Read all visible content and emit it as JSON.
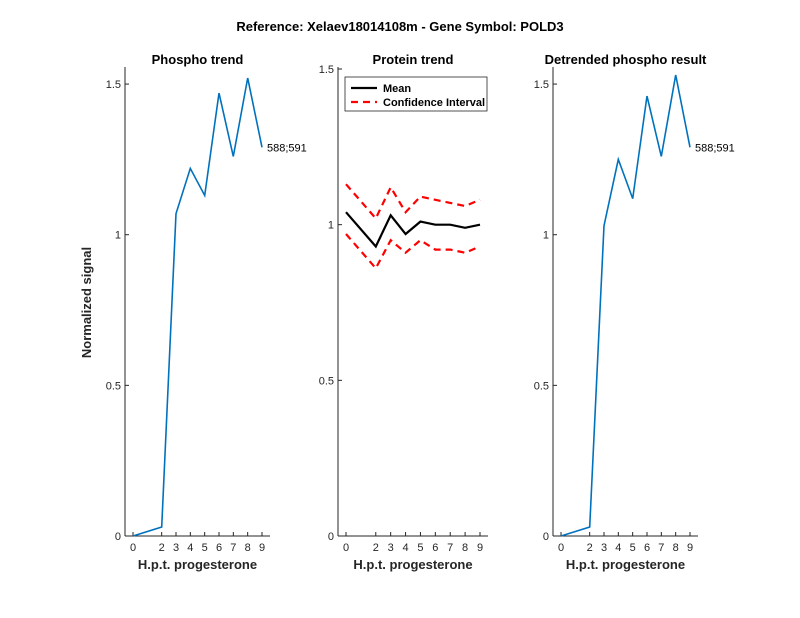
{
  "suptitle": "Reference:  Xelaev18014108m - Gene Symbol:  POLD3",
  "colors": {
    "phospho": "#0072BD",
    "mean": "#000000",
    "ci": "#FF0000"
  },
  "chart_data": [
    {
      "type": "line",
      "title": "Phospho trend",
      "xlabel": "H.p.t. progesterone",
      "ylabel": "Normalized signal",
      "xticks": [
        0,
        2,
        3,
        4,
        5,
        6,
        7,
        8,
        9
      ],
      "yticks": [
        "0",
        "0.5",
        "1",
        "1.5"
      ],
      "ylim": [
        0,
        1.55
      ],
      "series": [
        {
          "annotation": "588;591",
          "x": [
            0,
            2,
            3,
            4,
            5,
            6,
            7,
            8,
            9
          ],
          "y": [
            0.0,
            0.03,
            1.07,
            1.22,
            1.13,
            1.47,
            1.26,
            1.52,
            1.29
          ]
        }
      ]
    },
    {
      "type": "line",
      "title": "Protein trend",
      "xlabel": "H.p.t. progesterone",
      "xticks": [
        0,
        2,
        3,
        4,
        5,
        6,
        7,
        8,
        9
      ],
      "yticks": [
        "0",
        "0.5",
        "1",
        "1.5"
      ],
      "ylim": [
        0,
        1.5
      ],
      "legend": {
        "placement": "top-left",
        "entries": [
          "Mean",
          "Confidence Interval"
        ]
      },
      "series": [
        {
          "name": "Mean",
          "x": [
            0,
            2,
            3,
            4,
            5,
            6,
            7,
            8,
            9
          ],
          "y": [
            1.04,
            0.93,
            1.03,
            0.97,
            1.01,
            1.0,
            1.0,
            0.99,
            1.0
          ]
        },
        {
          "name": "Confidence Interval",
          "x": [
            0,
            2,
            3,
            4,
            5,
            6,
            7,
            8,
            9
          ],
          "y": [
            1.13,
            1.02,
            1.12,
            1.04,
            1.09,
            1.08,
            1.07,
            1.06,
            1.08
          ]
        },
        {
          "name": "Confidence Interval",
          "x": [
            0,
            2,
            3,
            4,
            5,
            6,
            7,
            8,
            9
          ],
          "y": [
            0.97,
            0.86,
            0.95,
            0.91,
            0.95,
            0.92,
            0.92,
            0.91,
            0.93
          ]
        }
      ]
    },
    {
      "type": "line",
      "title": "Detrended phospho result",
      "xlabel": "H.p.t. progesterone",
      "xticks": [
        0,
        2,
        3,
        4,
        5,
        6,
        7,
        8,
        9
      ],
      "yticks": [
        "0",
        "0.5",
        "1",
        "1.5"
      ],
      "ylim": [
        0,
        1.55
      ],
      "series": [
        {
          "annotation": "588;591",
          "x": [
            0,
            2,
            3,
            4,
            5,
            6,
            7,
            8,
            9
          ],
          "y": [
            0.0,
            0.03,
            1.03,
            1.25,
            1.12,
            1.46,
            1.26,
            1.53,
            1.29
          ]
        }
      ]
    }
  ]
}
